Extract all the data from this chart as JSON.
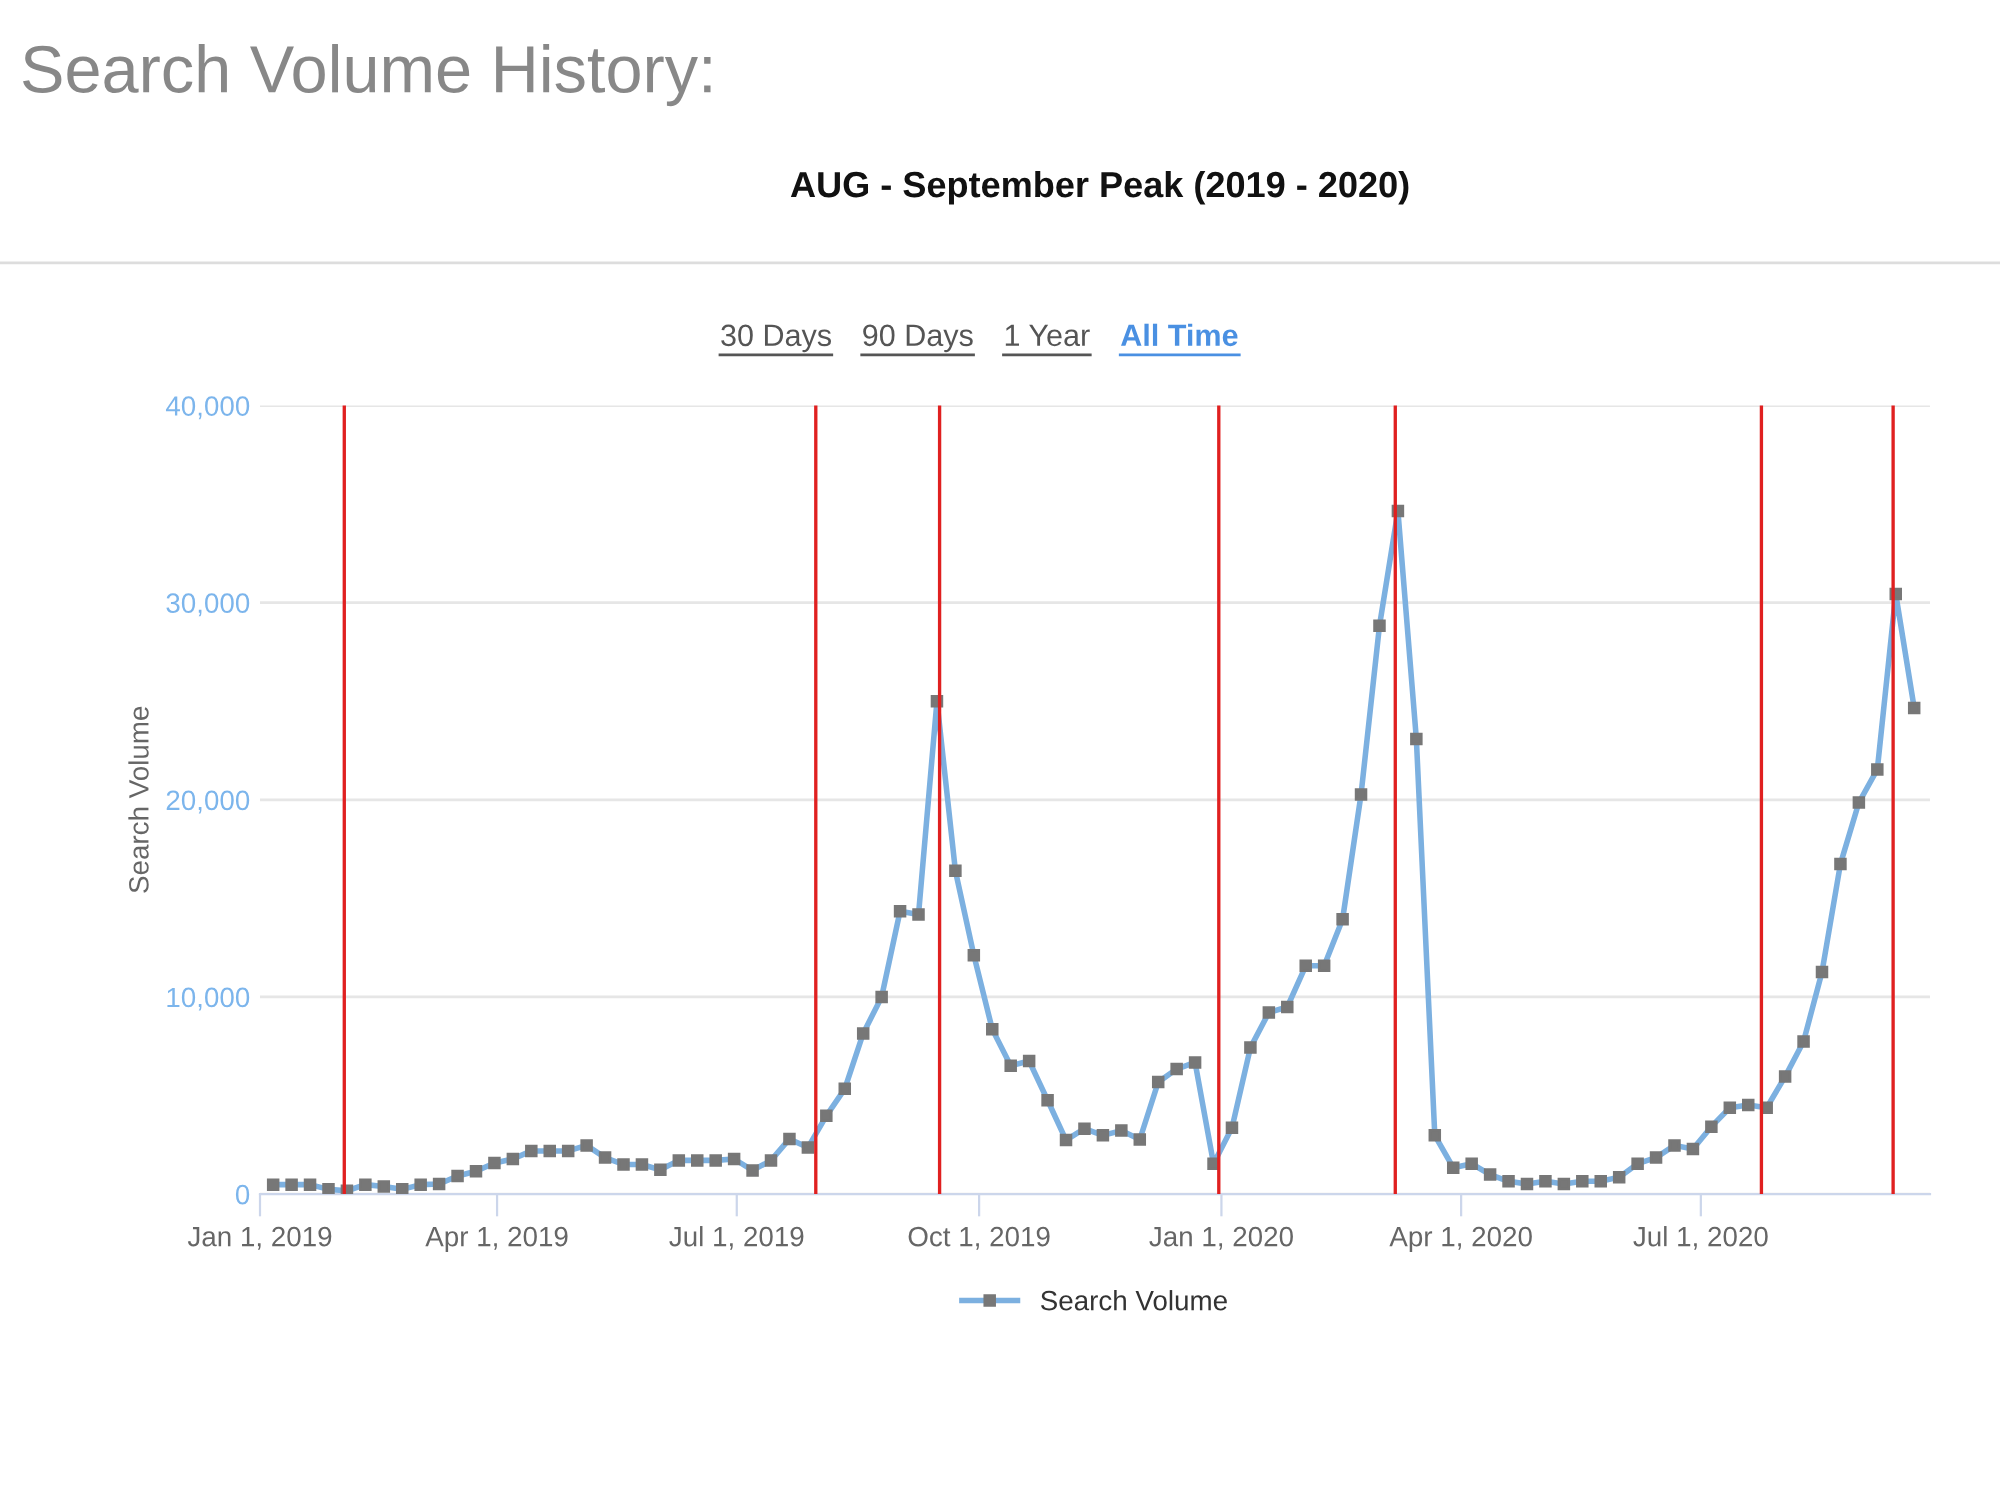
{
  "chart_data": {
    "type": "line",
    "title": "Search Volume History:",
    "subtitle": "AUG - September Peak (2019 - 2020)",
    "ylabel": "Search Volume",
    "annotations": [
      "30 Days",
      "90 Days",
      "1 Year",
      "All Time"
    ],
    "x": [
      "2019-01-06",
      "2019-01-13",
      "2019-01-20",
      "2019-01-27",
      "2019-02-03",
      "2019-02-10",
      "2019-02-17",
      "2019-02-24",
      "2019-03-03",
      "2019-03-10",
      "2019-03-17",
      "2019-03-24",
      "2019-03-31",
      "2019-04-07",
      "2019-04-14",
      "2019-04-21",
      "2019-04-28",
      "2019-05-05",
      "2019-05-12",
      "2019-05-19",
      "2019-05-26",
      "2019-06-02",
      "2019-06-09",
      "2019-06-16",
      "2019-06-23",
      "2019-06-30",
      "2019-07-07",
      "2019-07-14",
      "2019-07-21",
      "2019-07-28",
      "2019-08-04",
      "2019-08-11",
      "2019-08-18",
      "2019-08-25",
      "2019-09-01",
      "2019-09-08",
      "2019-09-15",
      "2019-09-22",
      "2019-09-29",
      "2019-10-06",
      "2019-10-13",
      "2019-10-20",
      "2019-10-27",
      "2019-11-03",
      "2019-11-10",
      "2019-11-17",
      "2019-11-24",
      "2019-12-01",
      "2019-12-08",
      "2019-12-15",
      "2019-12-22",
      "2019-12-29",
      "2020-01-05",
      "2020-01-12",
      "2020-01-19",
      "2020-01-26",
      "2020-02-02",
      "2020-02-09",
      "2020-02-16",
      "2020-02-23",
      "2020-03-01",
      "2020-03-08",
      "2020-03-15",
      "2020-03-22",
      "2020-03-29",
      "2020-04-05",
      "2020-04-12",
      "2020-04-19",
      "2020-04-26",
      "2020-05-03",
      "2020-05-10",
      "2020-05-17",
      "2020-05-24",
      "2020-05-31",
      "2020-06-07",
      "2020-06-14",
      "2020-06-21",
      "2020-06-28",
      "2020-07-05",
      "2020-07-12",
      "2020-07-19",
      "2020-07-26",
      "2020-08-02",
      "2020-08-09",
      "2020-08-16",
      "2020-08-23",
      "2020-08-30",
      "2020-09-06",
      "2020-09-13",
      "2020-09-20"
    ],
    "series": [
      {
        "name": "Search Volume",
        "color": "#7cb0e0",
        "values": [
          480,
          480,
          480,
          240,
          170,
          480,
          380,
          240,
          480,
          510,
          920,
          1160,
          1580,
          1780,
          2190,
          2190,
          2190,
          2470,
          1850,
          1500,
          1500,
          1230,
          1710,
          1710,
          1710,
          1780,
          1200,
          1710,
          2800,
          2360,
          3970,
          5340,
          8150,
          10000,
          14350,
          14180,
          25000,
          16400,
          12120,
          8360,
          6510,
          6750,
          4760,
          2740,
          3320,
          2980,
          3220,
          2770,
          5680,
          6340,
          6680,
          1540,
          3360,
          7430,
          9210,
          9490,
          11580,
          11580,
          13940,
          20270,
          28830,
          34650,
          23080,
          2980,
          1340,
          1540,
          990,
          650,
          510,
          650,
          510,
          650,
          650,
          860,
          1540,
          1850,
          2470,
          2290,
          3420,
          4380,
          4520,
          4380,
          5960,
          7740,
          11270,
          16750,
          19860,
          21540,
          30440,
          24660
        ]
      }
    ],
    "xlim": [
      "2019-01-01",
      "2020-09-26"
    ],
    "xticks": [
      {
        "value": "2019-01-01",
        "label": "Jan 1, 2019"
      },
      {
        "value": "2019-04-01",
        "label": "Apr 1, 2019"
      },
      {
        "value": "2019-07-01",
        "label": "Jul 1, 2019"
      },
      {
        "value": "2019-10-01",
        "label": "Oct 1, 2019"
      },
      {
        "value": "2020-01-01",
        "label": "Jan 1, 2020"
      },
      {
        "value": "2020-04-01",
        "label": "Apr 1, 2020"
      },
      {
        "value": "2020-07-01",
        "label": "Jul 1, 2020"
      }
    ],
    "ylim": [
      0,
      40000
    ],
    "yticks": [
      {
        "value": 0,
        "label": "0"
      },
      {
        "value": 10000,
        "label": "10,000"
      },
      {
        "value": 20000,
        "label": "20,000"
      },
      {
        "value": 30000,
        "label": "30,000"
      },
      {
        "value": 40000,
        "label": "40,000"
      }
    ],
    "ref_lines": [
      {
        "axis": "x",
        "value": "2019-02-02",
        "color": "#e02020"
      },
      {
        "axis": "x",
        "value": "2019-07-31",
        "color": "#e02020"
      },
      {
        "axis": "x",
        "value": "2019-09-16",
        "color": "#e02020"
      },
      {
        "axis": "x",
        "value": "2019-12-31",
        "color": "#e02020"
      },
      {
        "axis": "x",
        "value": "2020-03-07",
        "color": "#e02020"
      },
      {
        "axis": "x",
        "value": "2020-07-24",
        "color": "#e02020"
      },
      {
        "axis": "x",
        "value": "2020-09-12",
        "color": "#e02020"
      }
    ],
    "grid": "y",
    "legend": "bottom",
    "marker": "square",
    "line_style": "solid"
  }
}
